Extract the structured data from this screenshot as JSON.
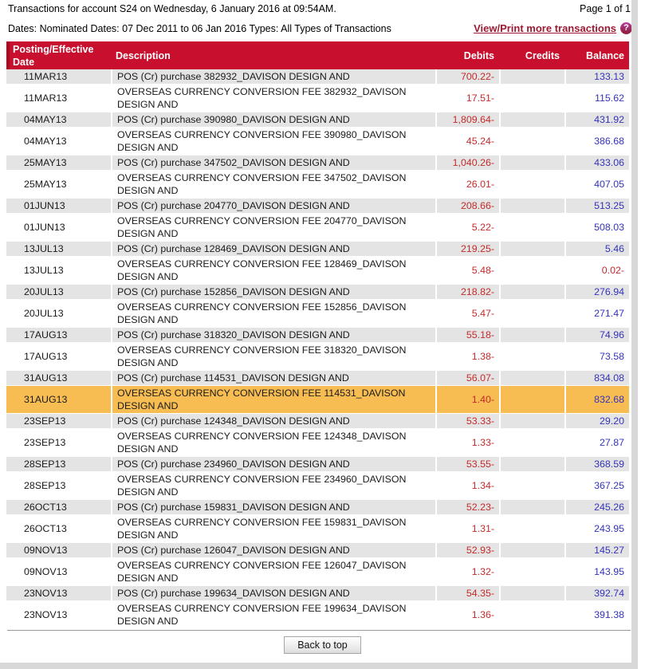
{
  "header": {
    "title": "Transactions for account S24 on Wednesday, 6 January 2016 at 09:54AM.",
    "page_indicator": "Page 1 of 1",
    "filters": "Dates: Nominated Dates: 07 Dec 2011 to 06 Jan 2016  Types: All Types of Transactions",
    "more_link": "View/Print more transactions",
    "help_icon": "?"
  },
  "table": {
    "columns": {
      "date": "Posting/Effective Date",
      "description": "Description",
      "debits": "Debits",
      "credits": "Credits",
      "balance": "Balance"
    },
    "rows": [
      {
        "date": "11MAR13",
        "description": "POS (Cr) purchase 382932_DAVISON DESIGN AND",
        "debits": "700.22-",
        "credits": "",
        "balance": "133.13"
      },
      {
        "date": "11MAR13",
        "description": "OVERSEAS CURRENCY CONVERSION FEE 382932_DAVISON DESIGN AND",
        "debits": "17.51-",
        "credits": "",
        "balance": "115.62"
      },
      {
        "date": "04MAY13",
        "description": "POS (Cr) purchase 390980_DAVISON DESIGN AND",
        "debits": "1,809.64-",
        "credits": "",
        "balance": "431.92"
      },
      {
        "date": "04MAY13",
        "description": "OVERSEAS CURRENCY CONVERSION FEE 390980_DAVISON DESIGN AND",
        "debits": "45.24-",
        "credits": "",
        "balance": "386.68"
      },
      {
        "date": "25MAY13",
        "description": "POS (Cr) purchase 347502_DAVISON DESIGN AND",
        "debits": "1,040.26-",
        "credits": "",
        "balance": "433.06"
      },
      {
        "date": "25MAY13",
        "description": "OVERSEAS CURRENCY CONVERSION FEE 347502_DAVISON DESIGN AND",
        "debits": "26.01-",
        "credits": "",
        "balance": "407.05"
      },
      {
        "date": "01JUN13",
        "description": "POS (Cr) purchase 204770_DAVISON DESIGN AND",
        "debits": "208.66-",
        "credits": "",
        "balance": "513.25"
      },
      {
        "date": "01JUN13",
        "description": "OVERSEAS CURRENCY CONVERSION FEE 204770_DAVISON DESIGN AND",
        "debits": "5.22-",
        "credits": "",
        "balance": "508.03"
      },
      {
        "date": "13JUL13",
        "description": "POS (Cr) purchase 128469_DAVISON DESIGN AND",
        "debits": "219.25-",
        "credits": "",
        "balance": "5.46"
      },
      {
        "date": "13JUL13",
        "description": "OVERSEAS CURRENCY CONVERSION FEE 128469_DAVISON DESIGN AND",
        "debits": "5.48-",
        "credits": "",
        "balance": "0.02-",
        "balance_negative": true
      },
      {
        "date": "20JUL13",
        "description": "POS (Cr) purchase 152856_DAVISON DESIGN AND",
        "debits": "218.82-",
        "credits": "",
        "balance": "276.94"
      },
      {
        "date": "20JUL13",
        "description": "OVERSEAS CURRENCY CONVERSION FEE 152856_DAVISON DESIGN AND",
        "debits": "5.47-",
        "credits": "",
        "balance": "271.47"
      },
      {
        "date": "17AUG13",
        "description": "POS (Cr) purchase 318320_DAVISON DESIGN AND",
        "debits": "55.18-",
        "credits": "",
        "balance": "74.96"
      },
      {
        "date": "17AUG13",
        "description": "OVERSEAS CURRENCY CONVERSION FEE 318320_DAVISON DESIGN AND",
        "debits": "1.38-",
        "credits": "",
        "balance": "73.58"
      },
      {
        "date": "31AUG13",
        "description": "POS (Cr) purchase 114531_DAVISON DESIGN AND",
        "debits": "56.07-",
        "credits": "",
        "balance": "834.08"
      },
      {
        "date": "31AUG13",
        "description": "OVERSEAS CURRENCY CONVERSION FEE 114531_DAVISON DESIGN AND",
        "debits": "1.40-",
        "credits": "",
        "balance": "832.68",
        "highlighted": true
      },
      {
        "date": "23SEP13",
        "description": "POS (Cr) purchase 124348_DAVISON DESIGN AND",
        "debits": "53.33-",
        "credits": "",
        "balance": "29.20"
      },
      {
        "date": "23SEP13",
        "description": "OVERSEAS CURRENCY CONVERSION FEE 124348_DAVISON DESIGN AND",
        "debits": "1.33-",
        "credits": "",
        "balance": "27.87"
      },
      {
        "date": "28SEP13",
        "description": "POS (Cr) purchase 234960_DAVISON DESIGN AND",
        "debits": "53.55-",
        "credits": "",
        "balance": "368.59"
      },
      {
        "date": "28SEP13",
        "description": "OVERSEAS CURRENCY CONVERSION FEE 234960_DAVISON DESIGN AND",
        "debits": "1.34-",
        "credits": "",
        "balance": "367.25"
      },
      {
        "date": "26OCT13",
        "description": "POS (Cr) purchase 159831_DAVISON DESIGN AND",
        "debits": "52.23-",
        "credits": "",
        "balance": "245.26"
      },
      {
        "date": "26OCT13",
        "description": "OVERSEAS CURRENCY CONVERSION FEE 159831_DAVISON DESIGN AND",
        "debits": "1.31-",
        "credits": "",
        "balance": "243.95"
      },
      {
        "date": "09NOV13",
        "description": "POS (Cr) purchase 126047_DAVISON DESIGN AND",
        "debits": "52.93-",
        "credits": "",
        "balance": "145.27"
      },
      {
        "date": "09NOV13",
        "description": "OVERSEAS CURRENCY CONVERSION FEE 126047_DAVISON DESIGN AND",
        "debits": "1.32-",
        "credits": "",
        "balance": "143.95"
      },
      {
        "date": "23NOV13",
        "description": "POS (Cr) purchase 199634_DAVISON DESIGN AND",
        "debits": "54.35-",
        "credits": "",
        "balance": "392.74"
      },
      {
        "date": "23NOV13",
        "description": "OVERSEAS CURRENCY CONVERSION FEE 199634_DAVISON DESIGN AND",
        "debits": "1.36-",
        "credits": "",
        "balance": "391.38"
      }
    ]
  },
  "footer": {
    "back_to_top": "Back to top"
  },
  "colors": {
    "table_header_bg": "#c8102e",
    "row_alt_bg": "#e4e4e4",
    "highlight_row_bg": "#f7bd53",
    "debit_text": "#c42b2b",
    "balance_text": "#3434bb",
    "negative_balance_text": "#c42b2b",
    "link_text": "#9c1b32",
    "edge_shadow": "#d8d8d8"
  }
}
